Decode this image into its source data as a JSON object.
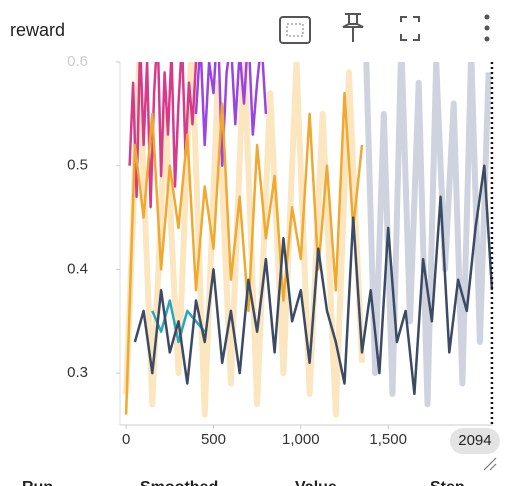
{
  "chart_data": {
    "type": "line",
    "title": "reward",
    "xlim": [
      -35,
      2100
    ],
    "ylim": [
      0.25,
      0.6
    ],
    "xticks": [
      0,
      500,
      {
        "value": 1000,
        "label": "1,000"
      },
      {
        "value": 1500,
        "label": "1,500"
      }
    ],
    "yticks": [
      0.3,
      0.4,
      0.5,
      0.6
    ],
    "hover_step": 2094,
    "table_headers": [
      "Run",
      "Smoothed",
      "Value",
      "Step"
    ],
    "series": [
      {
        "color": "#fbe6bf",
        "faint": true,
        "x": [
          0,
          75,
          150,
          225,
          300,
          375,
          450,
          525,
          600,
          675,
          750,
          825,
          900,
          975,
          1050,
          1125,
          1200,
          1275,
          1350
        ],
        "values": [
          0.28,
          0.6,
          0.27,
          0.55,
          0.3,
          0.62,
          0.26,
          0.58,
          0.29,
          0.61,
          0.27,
          0.57,
          0.3,
          0.6,
          0.28,
          0.55,
          0.26,
          0.59,
          0.31
        ]
      },
      {
        "color": "#cfd3df",
        "faint": true,
        "x": [
          1375,
          1425,
          1475,
          1525,
          1575,
          1625,
          1675,
          1725,
          1775,
          1825,
          1875,
          1925,
          1975,
          2025,
          2075
        ],
        "values": [
          0.6,
          0.3,
          0.55,
          0.28,
          0.62,
          0.35,
          0.58,
          0.27,
          0.6,
          0.4,
          0.56,
          0.29,
          0.61,
          0.33,
          0.59
        ]
      },
      {
        "color": "#d63a8a",
        "x": [
          20,
          40,
          60,
          80,
          100,
          120,
          140,
          160,
          180,
          200,
          220,
          240,
          260,
          280,
          300,
          320,
          340,
          360,
          380,
          400
        ],
        "values": [
          0.5,
          0.58,
          0.47,
          0.62,
          0.52,
          0.6,
          0.46,
          0.57,
          0.63,
          0.49,
          0.59,
          0.53,
          0.61,
          0.48,
          0.56,
          0.62,
          0.51,
          0.58,
          0.54,
          0.6
        ]
      },
      {
        "color": "#9b45e0",
        "x": [
          400,
          425,
          450,
          475,
          500,
          525,
          550,
          575,
          600,
          625,
          650,
          675,
          700,
          725,
          750,
          775,
          800
        ],
        "values": [
          0.55,
          0.62,
          0.52,
          0.6,
          0.57,
          0.64,
          0.5,
          0.59,
          0.62,
          0.54,
          0.61,
          0.56,
          0.63,
          0.53,
          0.58,
          0.62,
          0.55
        ]
      },
      {
        "color": "#f0a830",
        "x": [
          0,
          50,
          100,
          150,
          200,
          250,
          300,
          350,
          400,
          450,
          500,
          550,
          600,
          650,
          700,
          750,
          800,
          850,
          900,
          950,
          1000,
          1050,
          1100,
          1150,
          1200,
          1250,
          1300,
          1350
        ],
        "values": [
          0.26,
          0.52,
          0.45,
          0.55,
          0.4,
          0.5,
          0.44,
          0.53,
          0.38,
          0.48,
          0.42,
          0.56,
          0.39,
          0.47,
          0.36,
          0.52,
          0.43,
          0.49,
          0.37,
          0.46,
          0.41,
          0.55,
          0.4,
          0.5,
          0.38,
          0.57,
          0.44,
          0.52
        ]
      },
      {
        "color": "#2aa7b8",
        "x": [
          150,
          200,
          250,
          300,
          350,
          400,
          450
        ],
        "values": [
          0.36,
          0.34,
          0.37,
          0.33,
          0.36,
          0.35,
          0.34
        ]
      },
      {
        "color": "#3c4a63",
        "x": [
          50,
          100,
          150,
          200,
          250,
          300,
          350,
          400,
          450,
          500,
          550,
          600,
          650,
          700,
          750,
          800,
          850,
          900,
          950,
          1000,
          1050,
          1100,
          1150,
          1200,
          1250,
          1300,
          1350,
          1400,
          1450,
          1500,
          1550,
          1600,
          1650,
          1700,
          1750,
          1800,
          1850,
          1900,
          1950,
          2000,
          2050,
          2094
        ],
        "values": [
          0.33,
          0.36,
          0.3,
          0.38,
          0.32,
          0.35,
          0.29,
          0.37,
          0.33,
          0.4,
          0.31,
          0.36,
          0.3,
          0.39,
          0.34,
          0.41,
          0.32,
          0.43,
          0.35,
          0.38,
          0.31,
          0.42,
          0.36,
          0.33,
          0.29,
          0.45,
          0.32,
          0.38,
          0.3,
          0.44,
          0.33,
          0.36,
          0.28,
          0.41,
          0.35,
          0.47,
          0.32,
          0.39,
          0.36,
          0.44,
          0.5,
          0.38
        ]
      }
    ]
  }
}
